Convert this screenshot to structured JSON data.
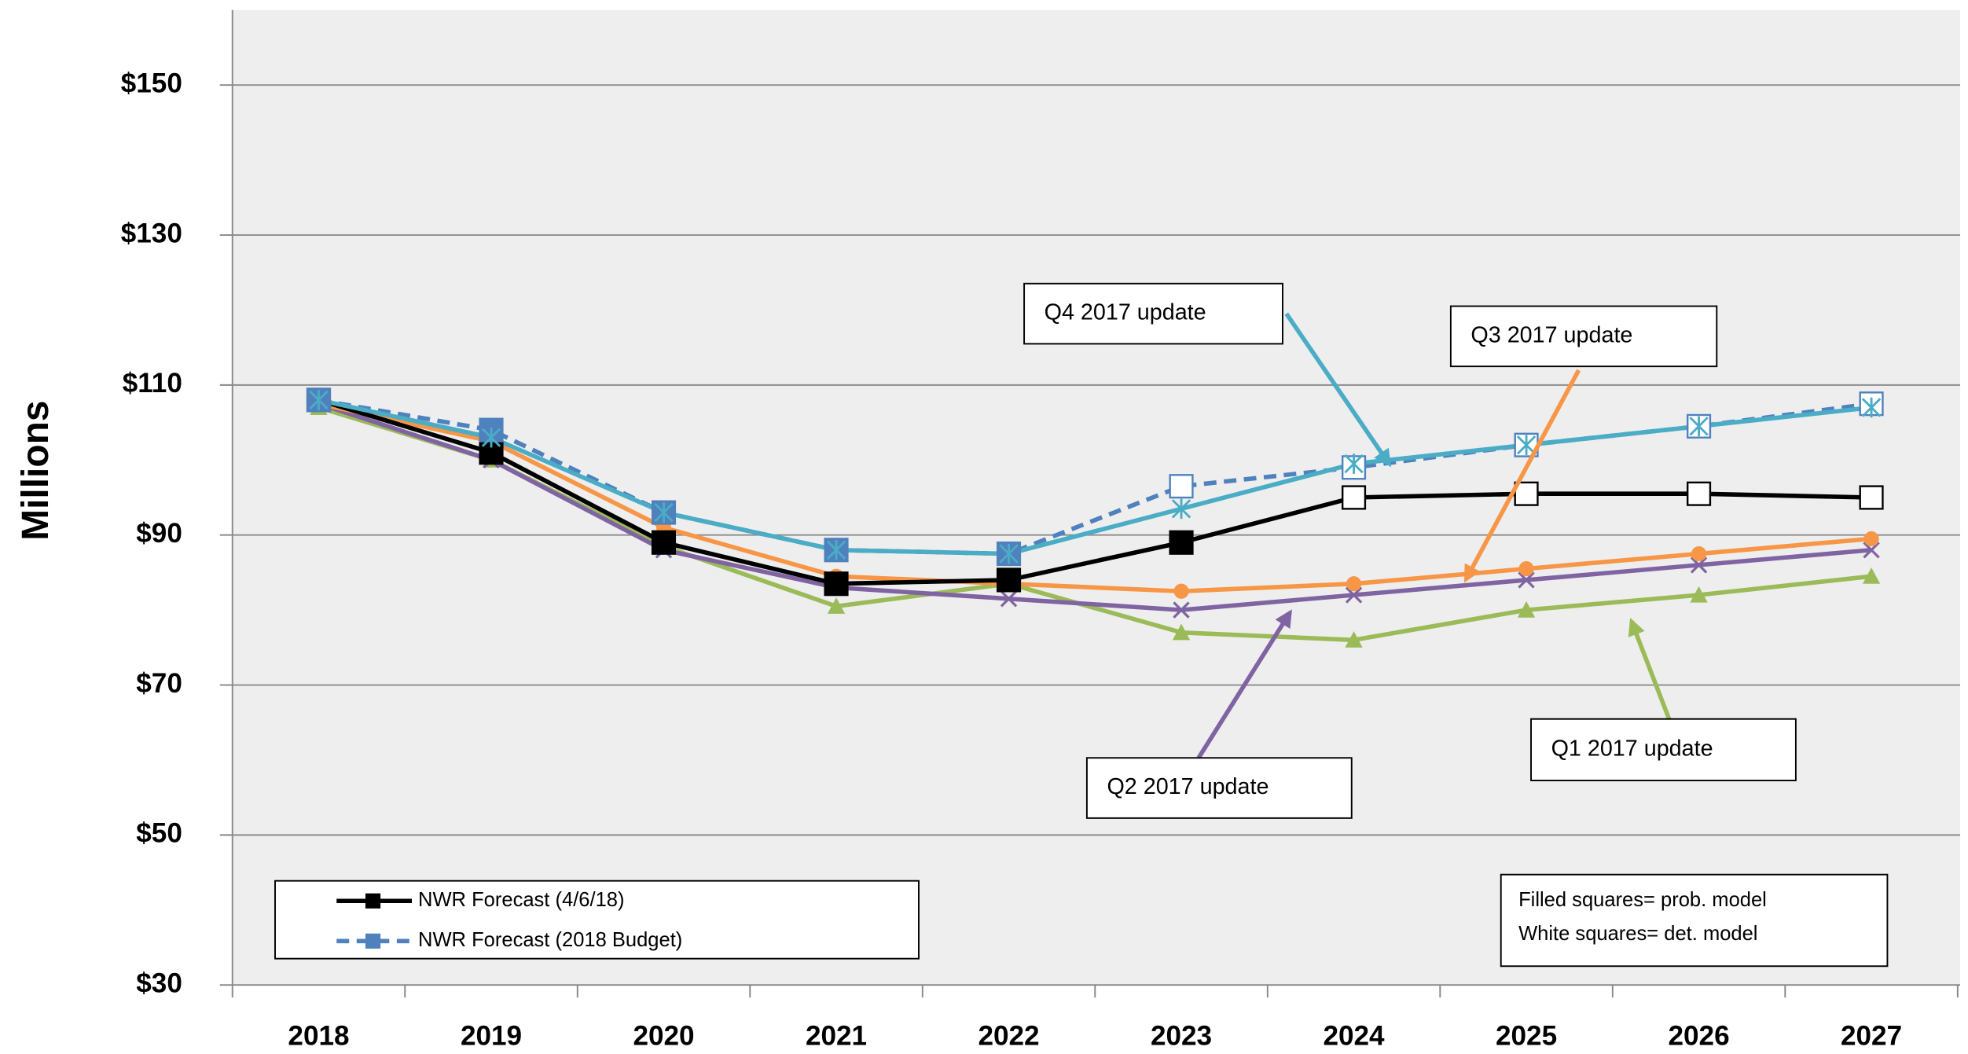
{
  "chart_data": {
    "type": "line",
    "ylabel": "Millions",
    "categories": [
      "2018",
      "2019",
      "2020",
      "2021",
      "2022",
      "2023",
      "2024",
      "2025",
      "2026",
      "2027"
    ],
    "ylim": [
      30,
      160
    ],
    "yticks": [
      {
        "value": 30,
        "label": "$30"
      },
      {
        "value": 50,
        "label": "$50"
      },
      {
        "value": 70,
        "label": "$70"
      },
      {
        "value": 90,
        "label": "$90"
      },
      {
        "value": 110,
        "label": "$110"
      },
      {
        "value": 130,
        "label": "$130"
      },
      {
        "value": 150,
        "label": "$150"
      }
    ],
    "grid": true,
    "legend": "lower left",
    "series": [
      {
        "name": "NWR Forecast (4/6/18)",
        "color": "#000000",
        "marker": "square",
        "dashed": false,
        "in_legend": true,
        "marker_fills": [
          "#000000",
          "#000000",
          "#000000",
          "#000000",
          "#000000",
          "#000000",
          "#ffffff",
          "#ffffff",
          "#ffffff",
          "#ffffff"
        ],
        "values": [
          108,
          101,
          89,
          83.5,
          84,
          89,
          95,
          95.5,
          95.5,
          95
        ]
      },
      {
        "name": "NWR Forecast (2018 Budget)",
        "color": "#4f81bd",
        "marker": "square",
        "dashed": true,
        "in_legend": true,
        "marker_fills": [
          "#4f81bd",
          "#4f81bd",
          "#4f81bd",
          "#4f81bd",
          "#4f81bd",
          "#ffffff",
          "#ffffff",
          "#ffffff",
          "#ffffff",
          "#ffffff"
        ],
        "values": [
          108,
          104,
          93,
          88,
          87.5,
          96.5,
          99,
          102,
          104.5,
          107.5
        ]
      },
      {
        "name": "Q4 2017 update",
        "color": "#4bacc6",
        "marker": "star",
        "dashed": false,
        "in_legend": false,
        "values": [
          108,
          103,
          93,
          88,
          87.5,
          93.5,
          99.5,
          102,
          104.5,
          107
        ]
      },
      {
        "name": "Q3 2017 update",
        "color": "#f79646",
        "marker": "circle",
        "dashed": false,
        "in_legend": false,
        "values": [
          107.5,
          102.5,
          91,
          84.5,
          83.5,
          82.5,
          83.5,
          85.5,
          87.5,
          89.5
        ]
      },
      {
        "name": "Q2 2017 update",
        "color": "#8064a2",
        "marker": "x",
        "dashed": false,
        "in_legend": false,
        "values": [
          107.5,
          100,
          88,
          83,
          81.5,
          80,
          82,
          84,
          86,
          88
        ]
      },
      {
        "name": "Q1 2017 update",
        "color": "#9bbb59",
        "marker": "triangle",
        "dashed": false,
        "in_legend": false,
        "values": [
          107,
          100,
          88.5,
          80.5,
          83.5,
          77,
          76,
          80,
          82,
          84.5
        ]
      }
    ],
    "note": [
      "Filled squares= prob. model",
      "White squares= det. model"
    ]
  }
}
